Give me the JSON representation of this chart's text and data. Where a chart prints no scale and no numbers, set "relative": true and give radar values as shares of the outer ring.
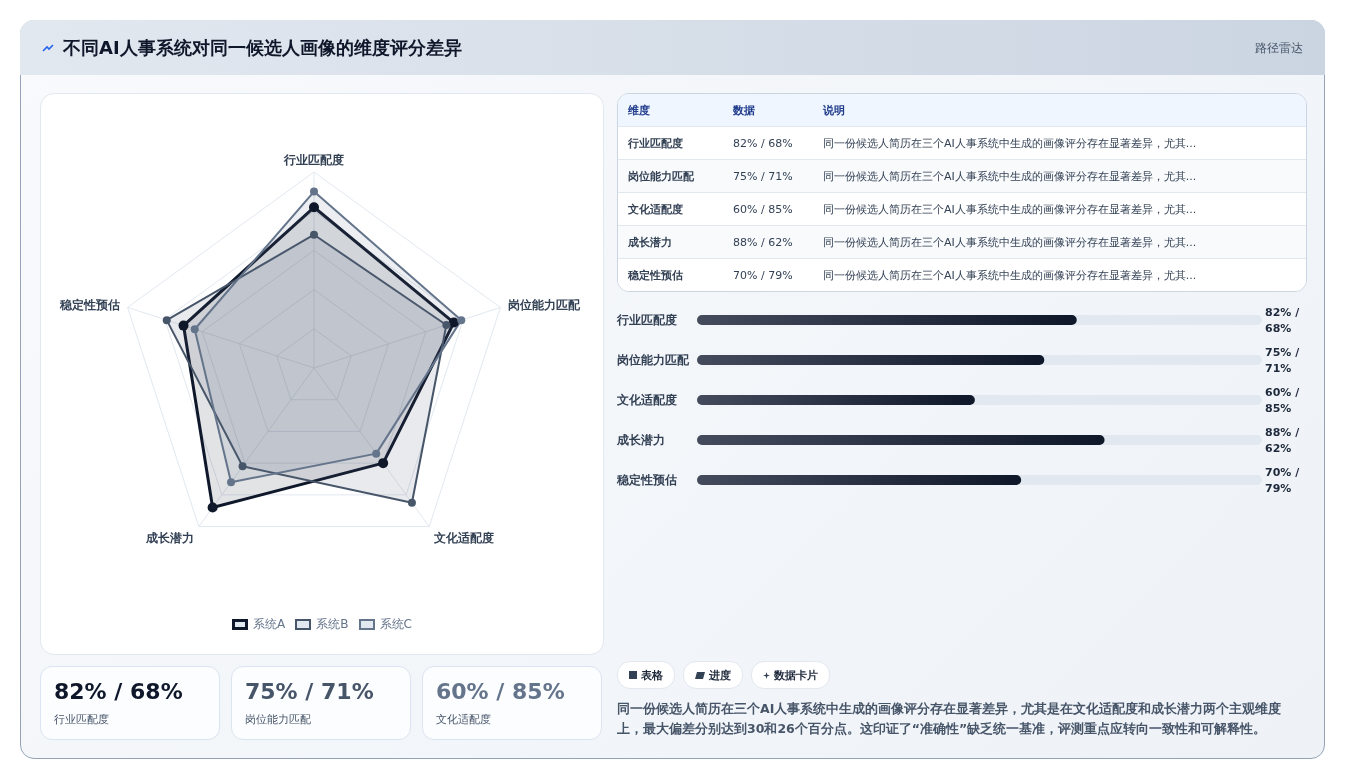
{
  "chart_data": [
    {
      "type": "radar",
      "title": "不同AI人事系统对同一候选人画像的维度评分差异",
      "categories": [
        "行业匹配度",
        "岗位能力匹配",
        "文化适配度",
        "成长潜力",
        "稳定性预估"
      ],
      "relative": true,
      "grid": true,
      "marker": "circle",
      "legend": "bottom",
      "series": [
        {
          "name": "系统A",
          "color": "#0f172a",
          "values": [
            0.82,
            0.75,
            0.6,
            0.88,
            0.7
          ]
        },
        {
          "name": "系统B",
          "color": "#475569",
          "values": [
            0.68,
            0.71,
            0.85,
            0.62,
            0.79
          ]
        },
        {
          "name": "系统C",
          "color": "#64748b",
          "values": [
            0.9,
            0.79,
            0.54,
            0.72,
            0.64
          ]
        }
      ]
    },
    {
      "type": "other",
      "title": "路径雷达",
      "categories": [
        "行业匹配度",
        "岗位能力匹配",
        "文化适配度",
        "成长潜力",
        "稳定性预估"
      ],
      "value_labels": [
        "82% / 68%",
        "75% / 71%",
        "60% / 85%",
        "88% / 62%",
        "70% / 79%"
      ],
      "annotations": [
        "维度",
        "数据",
        "说明",
        "同一份候选人简历在三个AI人事系统中生成的画像评分存在显著差异，尤其...",
        "同一份候选人简历在三个AI人事系统中生成的画像评分存在显著差异，尤其...",
        "同一份候选人简历在三个AI人事系统中生成的画像评分存在显著差异，尤其...",
        "同一份候选人简历在三个AI人事系统中生成的画像评分存在显著差异，尤其...",
        "同一份候选人简历在三个AI人事系统中生成的画像评分存在显著差异，尤其..."
      ]
    },
    {
      "type": "bar",
      "orientation": "horizontal",
      "categories": [
        "行业匹配度",
        "岗位能力匹配",
        "文化适配度",
        "成长潜力",
        "稳定性预估"
      ],
      "values": [
        82,
        75,
        60,
        88,
        70
      ],
      "color": "#0f172a",
      "xlim": [
        0,
        122
      ],
      "tick_labels": "y",
      "value_labels": [
        "82% / 68%",
        "75% / 71%",
        "60% / 85%",
        "88% / 62%",
        "70% / 79%"
      ]
    },
    {
      "type": "other",
      "categories": [
        "行业匹配度",
        "岗位能力匹配",
        "文化适配度"
      ],
      "value_labels": [
        "82% / 68%",
        "75% / 71%",
        "60% / 85%"
      ],
      "annotations": [
        "表格",
        "进度",
        "数据卡片",
        "同一份候选人简历在三个AI人事系统中生成的画像评分存在显著差异，尤其是在文化适配度和成长潜力两个主观维度上，最大偏差分别达到30和26个百分点。这印证了“准确性”缺乏统一基准，评测重点应转向一致性和可解释性。"
      ]
    }
  ]
}
